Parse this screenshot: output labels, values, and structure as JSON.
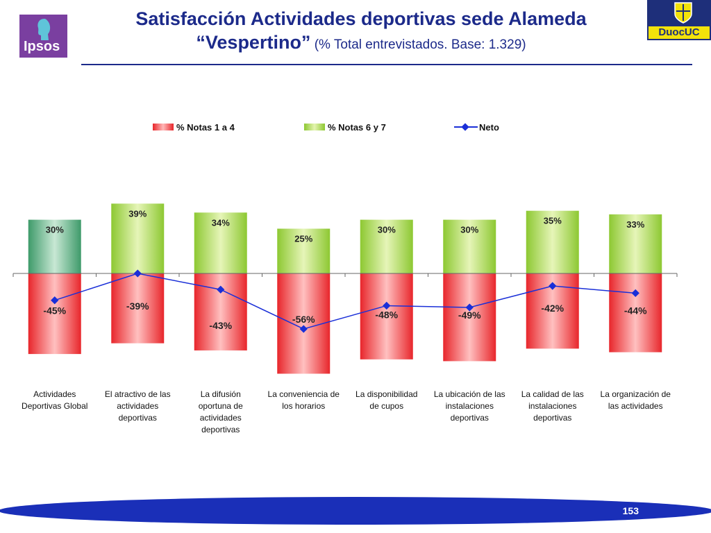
{
  "header": {
    "title_line1": "Satisfacción Actividades deportivas sede Alameda",
    "title_line2_emph": "“Vespertino”",
    "title_line2_sub": " (% Total entrevistados. Base: 1.329)",
    "logo_left": "Ipsos",
    "logo_right": "DuocUC"
  },
  "colors": {
    "title": "#1c2a8a",
    "red": "#e8262b",
    "green": "#8dc832",
    "dark_green": "#3e9a6a",
    "line": "#1a2fd8"
  },
  "chart_data": {
    "type": "bar",
    "categories": [
      "Actividades Deportivas Global",
      "El atractivo de las actividades deportivas",
      "La difusión oportuna de actividades deportivas",
      "La conveniencia de los horarios",
      "La disponibilidad de cupos",
      "La ubicación de las instalaciones deportivas",
      "La calidad de las instalaciones deportivas",
      "La organización de las actividades"
    ],
    "category_lines": [
      [
        "Actividades",
        "Deportivas Global"
      ],
      [
        "El atractivo de las",
        "actividades",
        "deportivas"
      ],
      [
        "La difusión",
        "oportuna de",
        "actividades",
        "deportivas"
      ],
      [
        "La conveniencia de",
        "los horarios"
      ],
      [
        "La disponibilidad",
        "de cupos"
      ],
      [
        "La ubicación de las",
        "instalaciones",
        "deportivas"
      ],
      [
        "La calidad de las",
        "instalaciones",
        "deportivas"
      ],
      [
        "La organización de",
        "las actividades"
      ]
    ],
    "series": [
      {
        "name": "% Notas 1 a 4",
        "values": [
          -45,
          -39,
          -43,
          -56,
          -48,
          -49,
          -42,
          -44
        ],
        "labels": [
          "-45%",
          "-39%",
          "-43%",
          "-56%",
          "-48%",
          "-49%",
          "-42%",
          "-44%"
        ]
      },
      {
        "name": "% Notas 6 y 7",
        "values": [
          30,
          39,
          34,
          25,
          30,
          30,
          35,
          33
        ],
        "labels": [
          "30%",
          "39%",
          "34%",
          "25%",
          "30%",
          "30%",
          "35%",
          "33%"
        ]
      },
      {
        "name": "Neto",
        "values": [
          -15,
          0,
          -9,
          -31,
          -18,
          -19,
          -7,
          -11
        ]
      }
    ],
    "legend": [
      "% Notas 1 a 4",
      "% Notas 6 y 7",
      "Neto"
    ],
    "ylim": [
      -60,
      45
    ],
    "grid": false,
    "legend_position": "top"
  },
  "footer": {
    "page_number": "153"
  }
}
